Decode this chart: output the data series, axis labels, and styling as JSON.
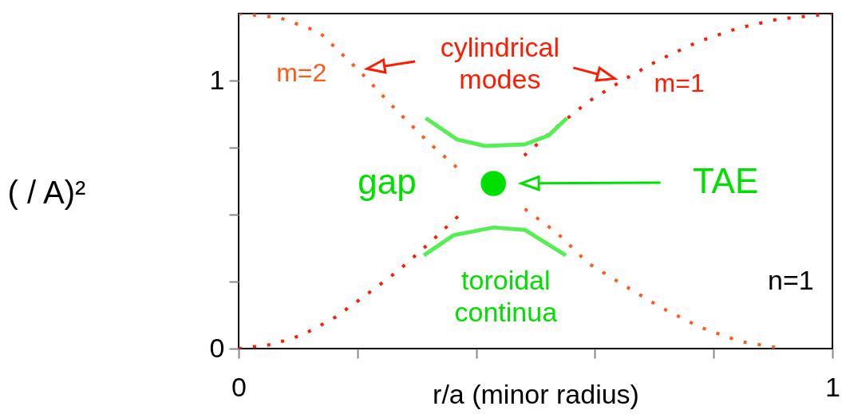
{
  "chart_data": {
    "type": "line",
    "xlabel": "r/a (minor radius)",
    "ylabel": "(  /  A)²",
    "xlim": [
      0,
      1
    ],
    "ylim": [
      0,
      1.25
    ],
    "xticks": [
      0,
      {
        "value": 0.2,
        "label": null
      },
      {
        "value": 0.4,
        "label": null
      },
      {
        "value": 0.6,
        "label": null
      },
      {
        "value": 0.8,
        "label": null
      },
      1
    ],
    "yticks": [
      0,
      {
        "value": 0.25,
        "label": null
      },
      {
        "value": 0.5,
        "label": null
      },
      {
        "value": 0.75,
        "label": null
      },
      1
    ],
    "grid": false,
    "series": [
      {
        "name": "m=1",
        "line_style": "dotted",
        "color": "#ff1a00",
        "x": [
          0,
          0.055,
          0.108,
          0.162,
          0.214,
          0.268,
          0.321,
          0.374,
          0.431,
          0.481,
          0.534,
          0.588,
          0.646,
          0.708,
          0.775,
          0.842,
          0.908,
          1
        ],
        "values": [
          0,
          0.015,
          0.051,
          0.116,
          0.199,
          0.289,
          0.393,
          0.503,
          null,
          0.72,
          0.824,
          0.92,
          1.0,
          1.077,
          1.146,
          1.196,
          1.229,
          1.25
        ]
      },
      {
        "name": "m=2",
        "line_style": "dotted",
        "color": "#ff5a1a",
        "x": [
          0,
          0.068,
          0.135,
          0.202,
          0.268,
          0.322,
          0.375,
          0.429,
          0.482,
          0.536,
          0.589,
          0.643,
          0.71,
          0.777,
          0.844,
          0.916
        ],
        "values": [
          1.25,
          1.235,
          1.182,
          1.039,
          0.884,
          0.765,
          0.661,
          null,
          0.521,
          0.432,
          0.318,
          0.244,
          0.155,
          0.08,
          0.027,
          0
        ]
      },
      {
        "line_style": "solid",
        "color": "#55ee55",
        "x": [
          0.315,
          0.368,
          0.415,
          0.482,
          0.522,
          0.553
        ],
        "values": [
          0.86,
          0.78,
          0.756,
          0.762,
          0.795,
          0.86
        ]
      },
      {
        "line_style": "solid",
        "color": "#55ee55",
        "x": [
          0.312,
          0.362,
          0.429,
          0.482,
          0.551
        ],
        "values": [
          0.348,
          0.423,
          0.452,
          0.443,
          0.348
        ]
      },
      {
        "type": "scatter",
        "marker": "circle",
        "color": "#00e000",
        "x": [
          0.429
        ],
        "values": [
          0.616
        ]
      }
    ],
    "annotations": [
      "cylindrical\nmodes",
      "gap",
      "TAE",
      "toroidal\ncontinua",
      "n=1"
    ]
  }
}
